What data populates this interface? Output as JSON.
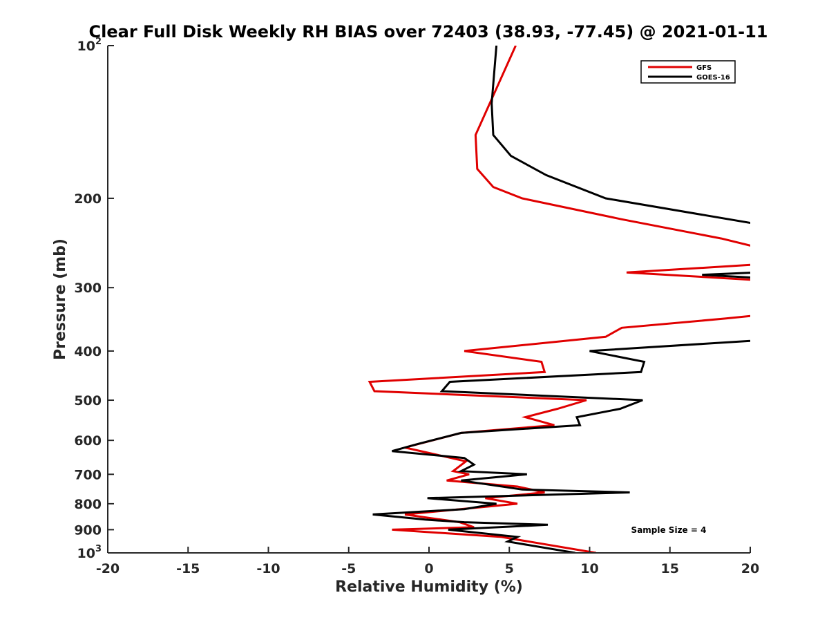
{
  "chart_data": {
    "type": "line",
    "title": "Clear Full Disk Weekly RH BIAS over 72403 (38.93, -77.45) @ 2021-01-11",
    "xlabel": "Relative Humidity (%)",
    "ylabel": "Pressure (mb)",
    "xlim": [
      -20,
      20
    ],
    "ylim": [
      100,
      1000
    ],
    "y_scale": "log",
    "y_reversed": true,
    "grid": false,
    "legend_position": "top-right",
    "x_ticks": [
      "-20",
      "-15",
      "-10",
      "-5",
      "0",
      "5",
      "10",
      "15",
      "20"
    ],
    "y_ticks": [
      {
        "base": "10",
        "exp": "2"
      },
      {
        "base": "200",
        "exp": ""
      },
      {
        "base": "300",
        "exp": ""
      },
      {
        "base": "400",
        "exp": ""
      },
      {
        "base": "500",
        "exp": ""
      },
      {
        "base": "600",
        "exp": ""
      },
      {
        "base": "700",
        "exp": ""
      },
      {
        "base": "800",
        "exp": ""
      },
      {
        "base": "900",
        "exp": ""
      },
      {
        "base": "10",
        "exp": "3"
      }
    ],
    "y_tick_values": [
      100,
      200,
      300,
      400,
      500,
      600,
      700,
      800,
      900,
      1000
    ],
    "series": [
      {
        "name": "GFS",
        "color": "#e00000",
        "points": [
          [
            5.4,
            100
          ],
          [
            2.9,
            150
          ],
          [
            3.0,
            175
          ],
          [
            4.0,
            190
          ],
          [
            5.8,
            200
          ],
          [
            12.0,
            220
          ],
          [
            18.2,
            240
          ],
          [
            20.5,
            250
          ],
          [
            20.5,
            270
          ],
          [
            12.3,
            280
          ],
          [
            20.5,
            290
          ],
          [
            20.5,
            340
          ],
          [
            18.5,
            345
          ],
          [
            12.0,
            360
          ],
          [
            11.0,
            375
          ],
          [
            2.2,
            400
          ],
          [
            7.0,
            420
          ],
          [
            7.2,
            440
          ],
          [
            -3.7,
            460
          ],
          [
            -3.4,
            480
          ],
          [
            9.8,
            500
          ],
          [
            8.0,
            520
          ],
          [
            6.0,
            540
          ],
          [
            7.8,
            560
          ],
          [
            2.0,
            580
          ],
          [
            -1.5,
            620
          ],
          [
            2.3,
            660
          ],
          [
            1.5,
            690
          ],
          [
            2.5,
            700
          ],
          [
            1.1,
            720
          ],
          [
            5.5,
            740
          ],
          [
            7.2,
            760
          ],
          [
            3.5,
            780
          ],
          [
            5.5,
            800
          ],
          [
            -1.5,
            840
          ],
          [
            1.9,
            870
          ],
          [
            2.8,
            890
          ],
          [
            -2.3,
            900
          ],
          [
            4.5,
            930
          ],
          [
            10.4,
            1000
          ]
        ]
      },
      {
        "name": "GOES-16",
        "color": "#000000",
        "points": [
          [
            4.2,
            100
          ],
          [
            3.9,
            130
          ],
          [
            4.0,
            150
          ],
          [
            5.1,
            165
          ],
          [
            7.3,
            180
          ],
          [
            11.0,
            200
          ],
          [
            20.5,
            225
          ],
          [
            20.5,
            280
          ],
          [
            17.0,
            283
          ],
          [
            20.5,
            287
          ],
          [
            20.5,
            380
          ],
          [
            20.0,
            382
          ],
          [
            10.0,
            400
          ],
          [
            13.4,
            420
          ],
          [
            13.2,
            440
          ],
          [
            1.3,
            460
          ],
          [
            0.8,
            480
          ],
          [
            13.3,
            500
          ],
          [
            11.9,
            520
          ],
          [
            9.2,
            540
          ],
          [
            9.4,
            560
          ],
          [
            2.0,
            580
          ],
          [
            -0.7,
            610
          ],
          [
            -2.3,
            630
          ],
          [
            2.2,
            650
          ],
          [
            2.8,
            670
          ],
          [
            2.0,
            690
          ],
          [
            6.1,
            700
          ],
          [
            2.0,
            720
          ],
          [
            5.8,
            750
          ],
          [
            12.5,
            760
          ],
          [
            -0.1,
            780
          ],
          [
            4.2,
            800
          ],
          [
            2.2,
            820
          ],
          [
            -3.5,
            840
          ],
          [
            -0.2,
            860
          ],
          [
            2.2,
            870
          ],
          [
            7.4,
            880
          ],
          [
            1.2,
            900
          ],
          [
            5.5,
            930
          ],
          [
            4.9,
            950
          ],
          [
            9.1,
            1000
          ]
        ]
      }
    ],
    "annotation": "Sample Size = 4"
  }
}
